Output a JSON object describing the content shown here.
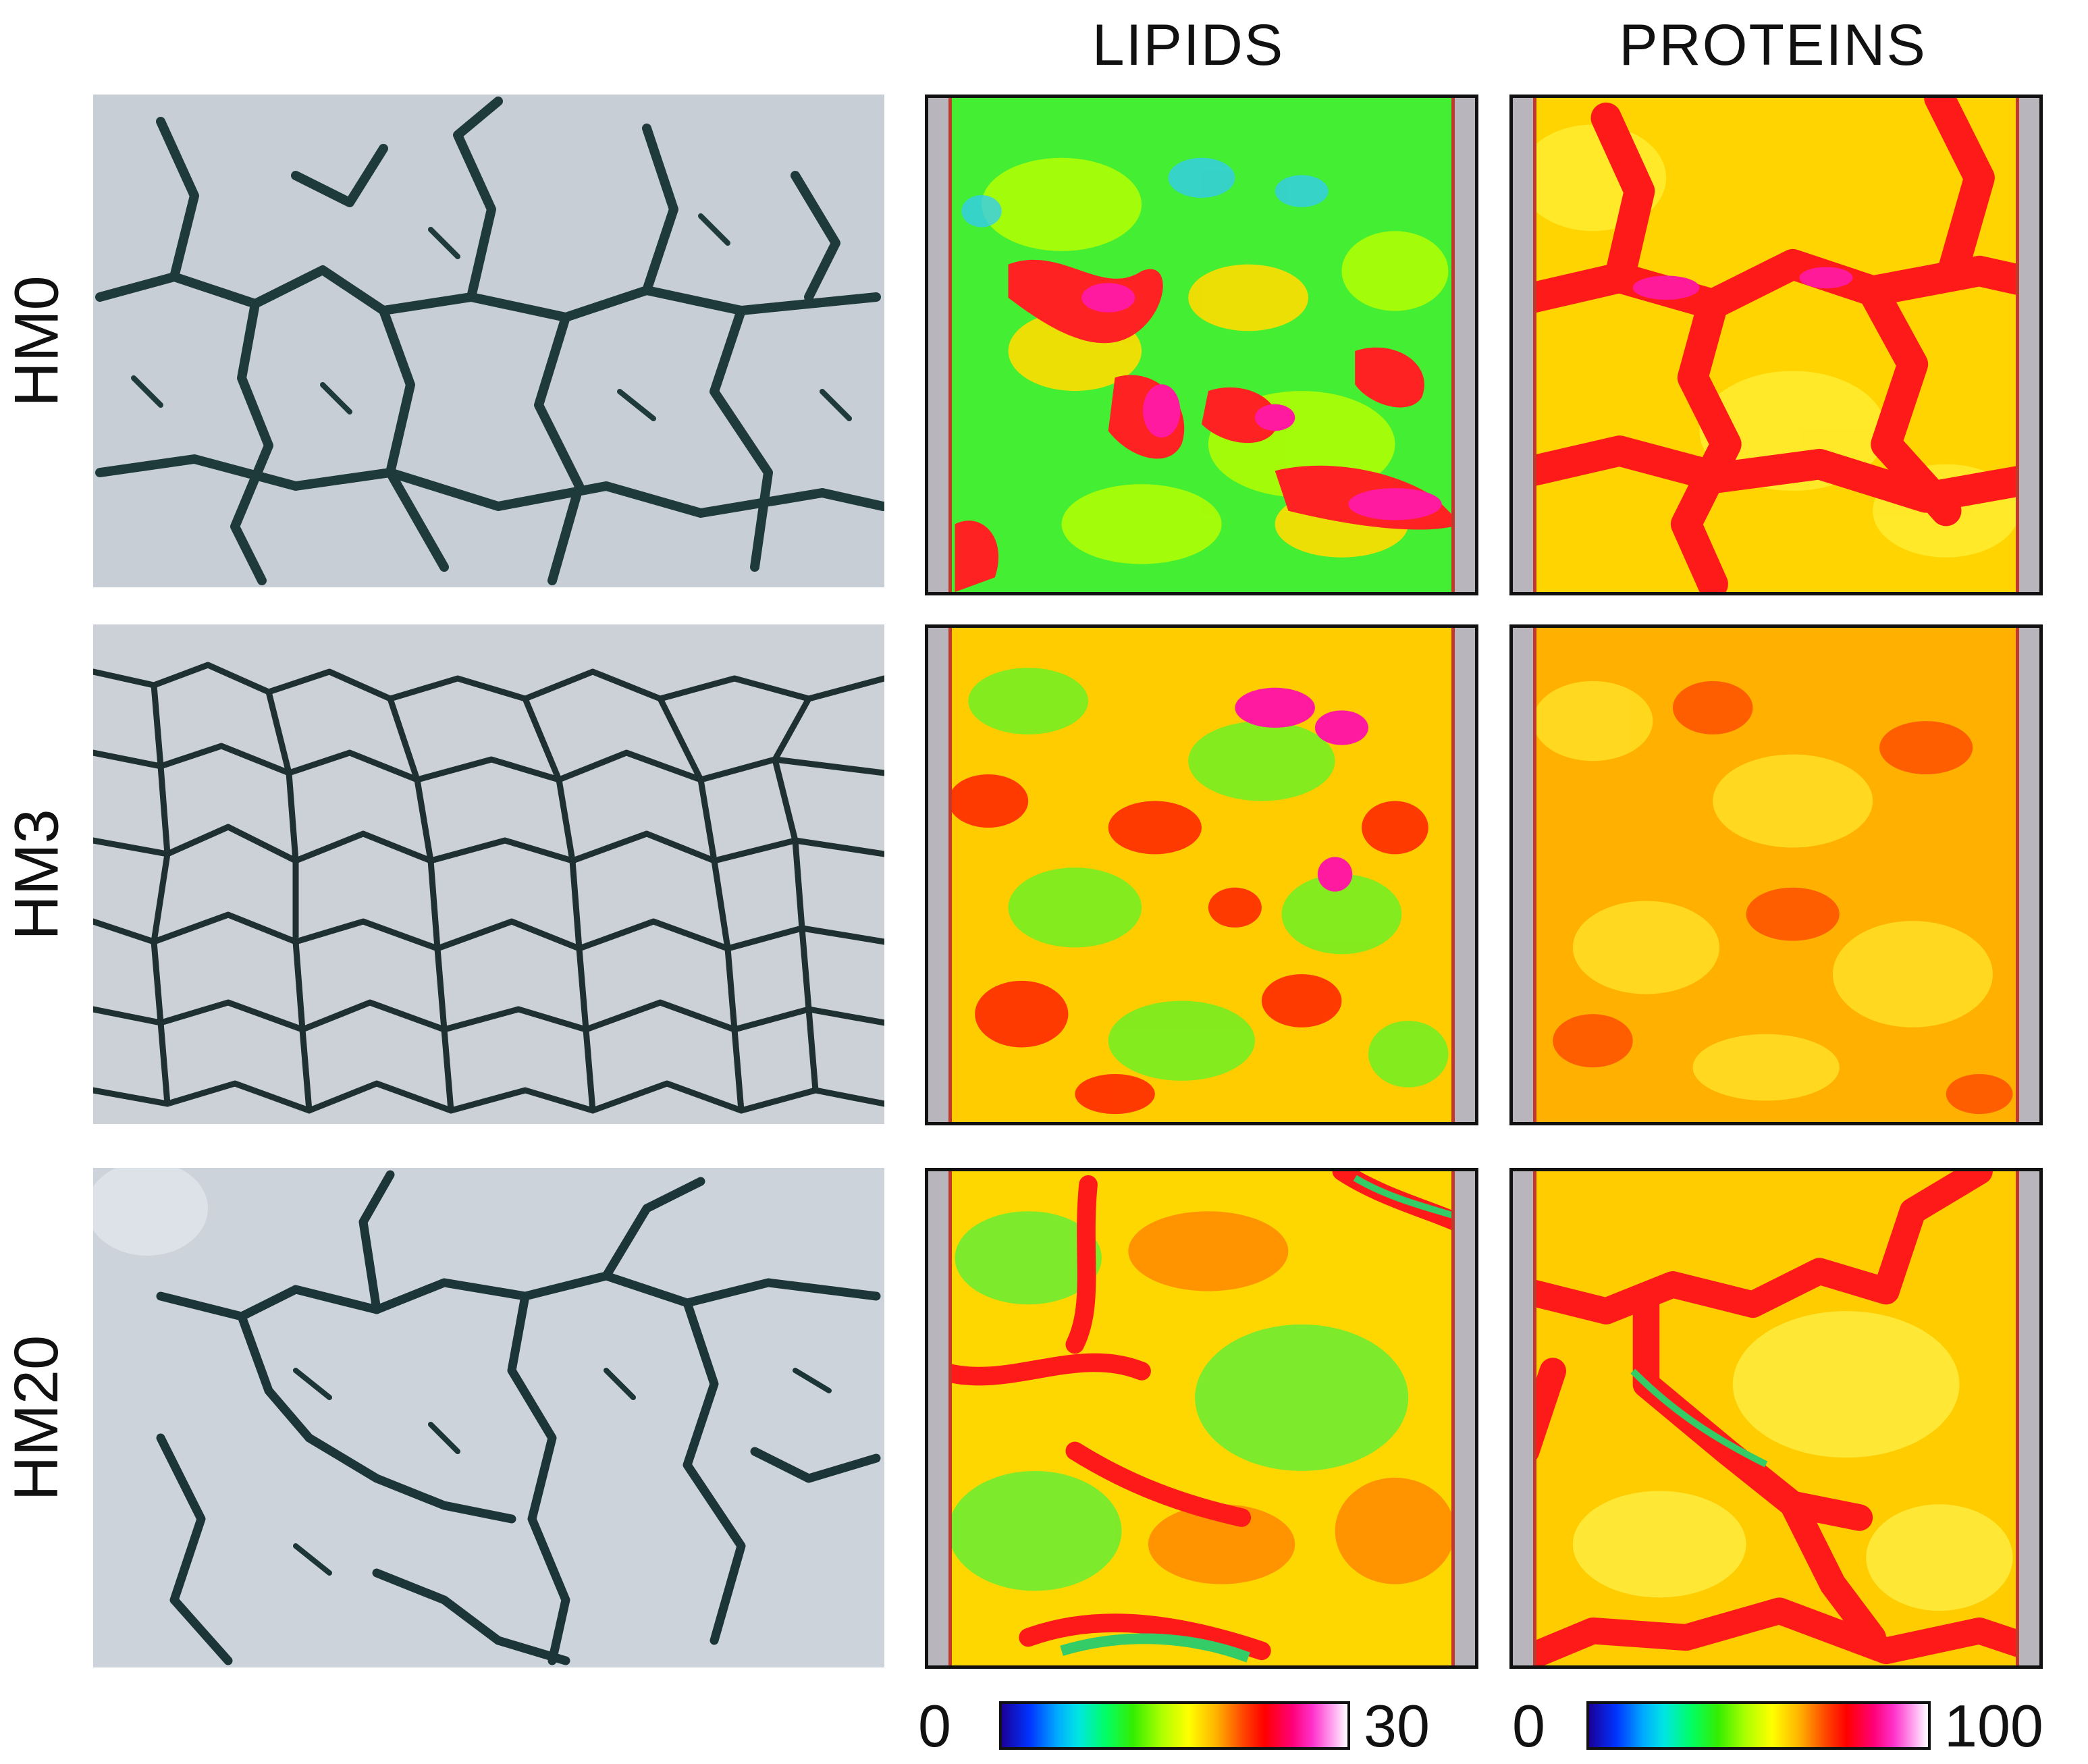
{
  "headers": {
    "lipids": "LIPIDS",
    "proteins": "PROTEINS"
  },
  "rows": [
    {
      "label": "HM0"
    },
    {
      "label": "HM3"
    },
    {
      "label": "HM20"
    }
  ],
  "colorbars": {
    "lipids": {
      "min": "0",
      "max": "30"
    },
    "proteins": {
      "min": "0",
      "max": "100"
    }
  },
  "colors": {
    "photo_background": "#c9cfd6",
    "crack": "#1f3a3a",
    "map_base_green": "#33ee33",
    "map_yellow": "#ffee00",
    "map_orange": "#ff9900",
    "map_red": "#ff1a1a",
    "map_magenta": "#ff1a99"
  }
}
